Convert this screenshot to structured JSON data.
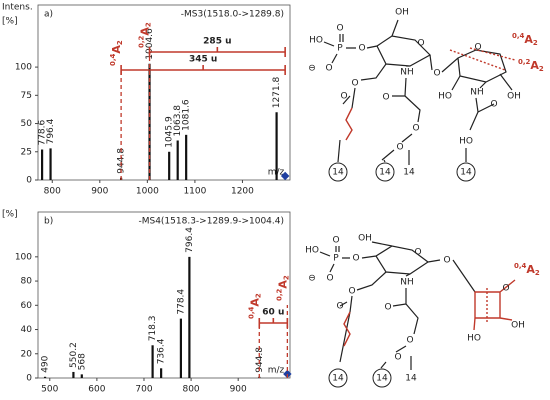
{
  "chart_data": [
    {
      "type": "bar",
      "panel": "a)",
      "title": "-MS3(1518.0->1289.8)",
      "y_label": [
        "Intens.",
        "[%]"
      ],
      "x_label": "m/z",
      "x": [
        778.6,
        796.4,
        944.8,
        1004.6,
        1045.9,
        1063.8,
        1081.6,
        1271.8
      ],
      "values": [
        27,
        28,
        2,
        103,
        25,
        35,
        40,
        60
      ],
      "color": "#111111",
      "precursor": 1289.8,
      "precursor_color": "#1f3fa0",
      "xlim": [
        770,
        1300
      ],
      "xticks": [
        800,
        900,
        1000,
        1100,
        1200
      ],
      "ylim": [
        0,
        155
      ],
      "yticks": [
        0,
        25,
        50,
        75,
        100
      ],
      "fragments": [
        {
          "x": 944.8,
          "pre": "0,4",
          "ion": "A",
          "sub": "2",
          "span": "345 u"
        },
        {
          "x": 1004.6,
          "pre": "0,2",
          "ion": "A",
          "sub": "2",
          "span": "285 u"
        }
      ],
      "annotation_color": "#c0392b"
    },
    {
      "type": "bar",
      "panel": "b)",
      "title": "-MS4(1518.3->1289.9->1004.4)",
      "y_label": [
        "[%]"
      ],
      "x_label": "m/z",
      "x": [
        490.0,
        550.2,
        568.0,
        718.3,
        736.4,
        778.4,
        796.4,
        944.8
      ],
      "values": [
        1,
        5,
        3,
        27,
        8,
        49,
        100,
        1
      ],
      "color": "#111111",
      "precursor": 1004.4,
      "precursor_color": "#1f3fa0",
      "xlim": [
        475,
        1010
      ],
      "xticks": [
        500,
        600,
        700,
        800,
        900
      ],
      "ylim": [
        0,
        137
      ],
      "yticks": [
        0,
        20,
        40,
        60,
        80,
        100
      ],
      "fragments": [
        {
          "x": 944.8,
          "pre": "0,4",
          "ion": "A",
          "sub": "2",
          "span": "60 u"
        },
        {
          "x": 1004.4,
          "pre": "0,2",
          "ion": "A",
          "sub": "2"
        }
      ],
      "annotation_color": "#c0392b"
    }
  ],
  "structures": [
    {
      "labels": [
        "HO",
        "P",
        "O",
        "O",
        "⊖",
        "O",
        "OH",
        "O",
        "O",
        "O",
        "NH",
        "O",
        "O",
        "O",
        "O",
        "O",
        "HO",
        "NH",
        "OH",
        "O",
        "HO",
        "14",
        "14",
        "14",
        "14"
      ],
      "fragments": [
        {
          "pre": "0,4",
          "ion": "A",
          "sub": "2"
        },
        {
          "pre": "0,2",
          "ion": "A",
          "sub": "2"
        }
      ]
    },
    {
      "labels": [
        "OH",
        "HO",
        "P",
        "O",
        "O",
        "⊖",
        "O",
        "O",
        "O",
        "O",
        "NH",
        "O",
        "O",
        "O",
        "O",
        "O",
        "OH",
        "HO",
        "14",
        "14",
        "14"
      ],
      "fragments": [
        {
          "pre": "0,4",
          "ion": "A",
          "sub": "2"
        }
      ]
    }
  ]
}
